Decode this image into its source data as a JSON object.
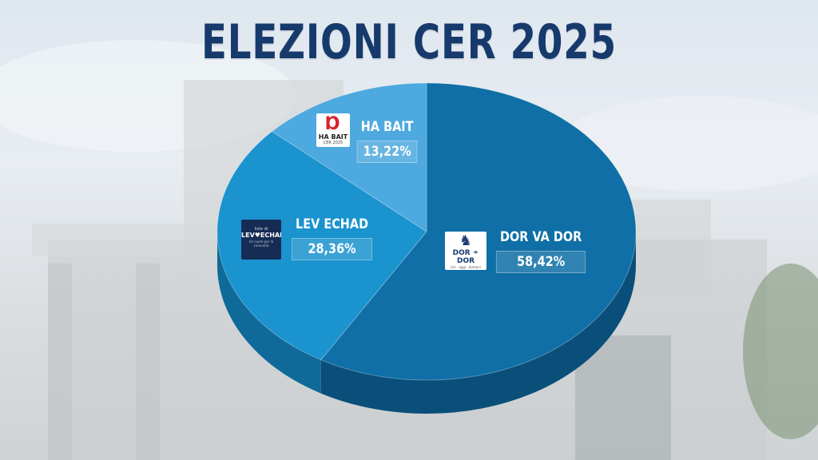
{
  "chart_data": {
    "type": "pie",
    "title": "ELEZIONI CER 2025",
    "categories": [
      "DOR VA DOR",
      "LEV ECHAD",
      "HA BAIT"
    ],
    "values": [
      58.42,
      28.36,
      13.22
    ],
    "value_labels": [
      "58,42%",
      "28,36%",
      "13,22%"
    ],
    "colors": [
      "#0f6fa6",
      "#1a93cf",
      "#4da9df"
    ],
    "side_colors": [
      "#0a4f7a",
      "#0f6a99",
      "#2f86b8"
    ],
    "three_d": true
  },
  "logos": {
    "ha_bait": {
      "line1": "HA BAIT",
      "line2": "CER 2025"
    },
    "lev_echad": {
      "small": "liste di",
      "name": "LEV♥ECHAD",
      "small2": "Un cuore per la comunità"
    },
    "dor_va_dor": {
      "name": "DOR ⚭ DOR",
      "small": "ieri · oggi · domani"
    }
  }
}
